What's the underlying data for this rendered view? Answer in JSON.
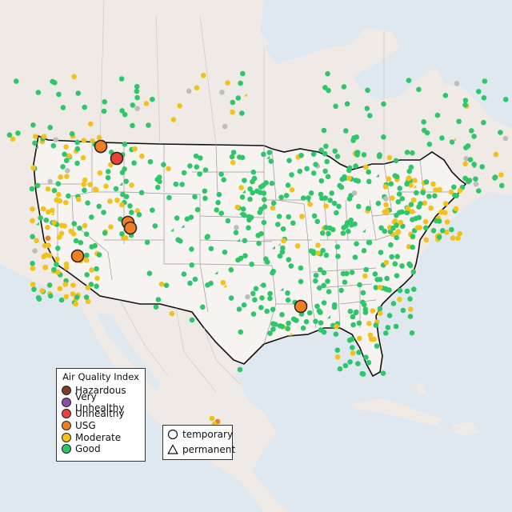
{
  "legend": {
    "title": "Air Quality Index",
    "categories": [
      {
        "label": "Hazardous",
        "color": "#7e3a2b"
      },
      {
        "label": "Very Unhealthy",
        "color": "#8f4fa0"
      },
      {
        "label": "Unhealthy",
        "color": "#e8423b"
      },
      {
        "label": "USG",
        "color": "#f07f24"
      },
      {
        "label": "Moderate",
        "color": "#f3c219"
      },
      {
        "label": "Good",
        "color": "#2fc66b"
      }
    ],
    "shapes": [
      {
        "label": "temporary",
        "icon": "circle-icon"
      },
      {
        "label": "permanent",
        "icon": "triangle-icon"
      }
    ]
  },
  "colors": {
    "ocean": "#dfe8ee",
    "land": "#efeae6",
    "usa": "#f6f3f1",
    "border": "#111111",
    "state_lines": "#9a9a9a",
    "no_data": "#bdbdbd"
  }
}
